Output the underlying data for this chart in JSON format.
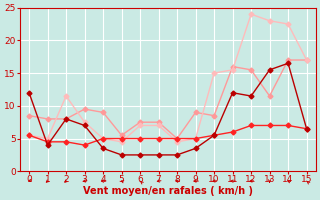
{
  "background_color": "#caeae4",
  "grid_color": "#ffffff",
  "xlabel": "Vent moyen/en rafales ( km/h )",
  "xlim": [
    -0.5,
    15.5
  ],
  "ylim": [
    0,
    25
  ],
  "xticks": [
    0,
    1,
    2,
    3,
    4,
    5,
    6,
    7,
    8,
    9,
    10,
    11,
    12,
    13,
    14,
    15
  ],
  "yticks": [
    0,
    5,
    10,
    15,
    20,
    25
  ],
  "series": [
    {
      "x": [
        0,
        1,
        2,
        3,
        4,
        5,
        6,
        7,
        8,
        9,
        10,
        11,
        12,
        13,
        14,
        15
      ],
      "y": [
        12,
        4,
        8,
        7,
        3.5,
        2.5,
        2.5,
        2.5,
        2.5,
        3.5,
        5.5,
        12,
        11.5,
        15.5,
        16.5,
        6.5
      ],
      "color": "#bb0000",
      "marker": "D",
      "markersize": 2.5,
      "linewidth": 1.0,
      "zorder": 4
    },
    {
      "x": [
        0,
        1,
        2,
        3,
        4,
        5,
        6,
        7,
        8,
        9,
        10,
        11,
        12,
        13,
        14,
        15
      ],
      "y": [
        5.5,
        4.5,
        4.5,
        4,
        5,
        5,
        5,
        5,
        5,
        5,
        5.5,
        6,
        7,
        7,
        7,
        6.5
      ],
      "color": "#ff2222",
      "marker": "D",
      "markersize": 2.5,
      "linewidth": 1.0,
      "zorder": 3
    },
    {
      "x": [
        0,
        1,
        2,
        3,
        4,
        5,
        6,
        7,
        8,
        9,
        10,
        11,
        12,
        13,
        14,
        15
      ],
      "y": [
        8.5,
        8,
        8,
        9.5,
        9,
        5.5,
        7.5,
        7.5,
        5,
        9,
        8.5,
        16,
        15.5,
        11.5,
        17,
        17
      ],
      "color": "#ff9999",
      "marker": "D",
      "markersize": 2.5,
      "linewidth": 1.0,
      "zorder": 2
    },
    {
      "x": [
        0,
        1,
        2,
        3,
        4,
        5,
        6,
        7,
        8,
        9,
        10,
        11,
        12,
        13,
        14,
        15
      ],
      "y": [
        5.5,
        5,
        11.5,
        7.5,
        5,
        4.5,
        7,
        7,
        4.5,
        5,
        15,
        15.5,
        24,
        23,
        22.5,
        17
      ],
      "color": "#ffbbbb",
      "marker": "D",
      "markersize": 2.5,
      "linewidth": 1.0,
      "zorder": 2
    }
  ],
  "arrow_angles": [
    225,
    202,
    202,
    247,
    270,
    315,
    337,
    247,
    292,
    270,
    247,
    270,
    247,
    180,
    315,
    337
  ]
}
